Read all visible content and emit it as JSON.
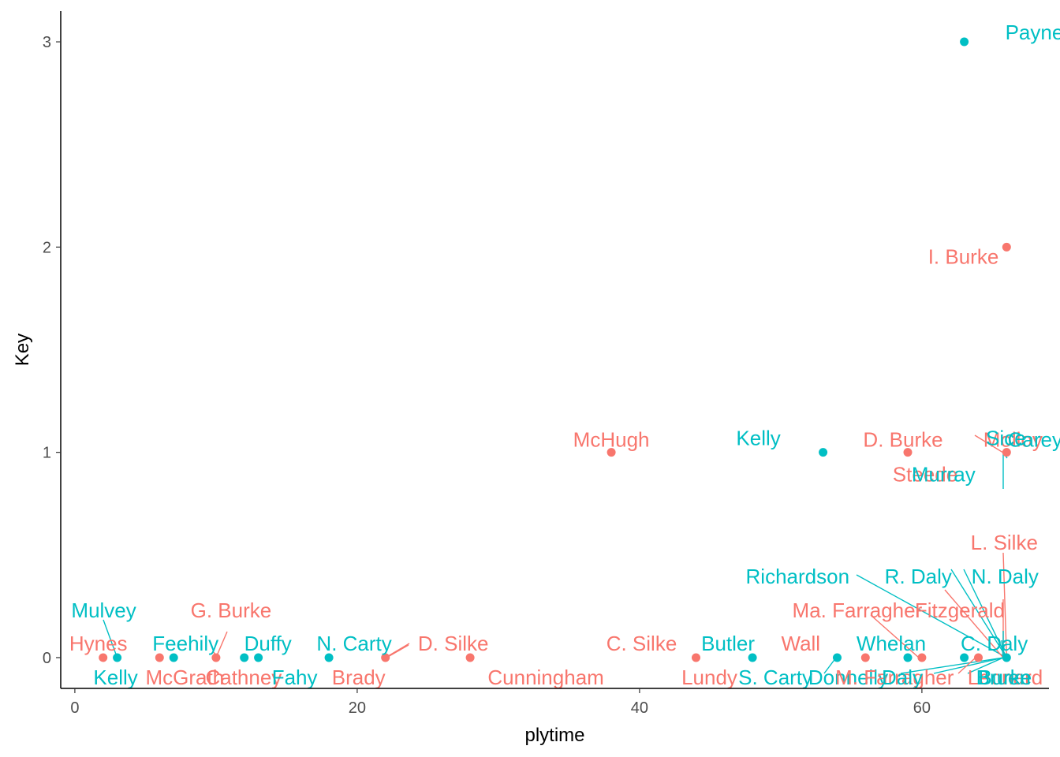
{
  "chart_data": {
    "type": "scatter",
    "xlabel": "plytime",
    "ylabel": "Key",
    "xlim": [
      -1,
      69
    ],
    "ylim": [
      -0.15,
      3.15
    ],
    "x_ticks": [
      0,
      20,
      40,
      60
    ],
    "y_ticks": [
      0,
      1,
      2,
      3
    ],
    "grid": false,
    "legend": "none",
    "colors": {
      "group_a": "#f8766d",
      "group_b": "#00bfc4"
    },
    "points": [
      {
        "x": 63,
        "y": 3,
        "label": "Payne",
        "group": "group_b"
      },
      {
        "x": 66,
        "y": 2,
        "label": "I. Burke",
        "group": "group_a"
      },
      {
        "x": 38,
        "y": 1,
        "label": "McHugh",
        "group": "group_a"
      },
      {
        "x": 53,
        "y": 1,
        "label": "Kelly",
        "group": "group_b"
      },
      {
        "x": 59,
        "y": 1,
        "label": "D. Burke",
        "group": "group_a"
      },
      {
        "x": 59,
        "y": 1,
        "label": "Steede",
        "group": "group_a"
      },
      {
        "x": 66,
        "y": 1,
        "label": "Molloy",
        "group": "group_a"
      },
      {
        "x": 66,
        "y": 1,
        "label": "Sice",
        "group": "group_b"
      },
      {
        "x": 66,
        "y": 1,
        "label": "Murray",
        "group": "group_b"
      },
      {
        "x": 66,
        "y": 1,
        "label": "Carey",
        "group": "group_b"
      },
      {
        "x": 2,
        "y": 0,
        "label": "Hynes",
        "group": "group_a"
      },
      {
        "x": 3,
        "y": 0,
        "label": "Mulvey",
        "group": "group_b"
      },
      {
        "x": 3,
        "y": 0,
        "label": "Kelly",
        "group": "group_b"
      },
      {
        "x": 6,
        "y": 0,
        "label": "McGrath",
        "group": "group_a"
      },
      {
        "x": 7,
        "y": 0,
        "label": "Feehily",
        "group": "group_b"
      },
      {
        "x": 10,
        "y": 0,
        "label": "G. Burke",
        "group": "group_a"
      },
      {
        "x": 10,
        "y": 0,
        "label": "Cathney",
        "group": "group_a"
      },
      {
        "x": 12,
        "y": 0,
        "label": "Duffy",
        "group": "group_b"
      },
      {
        "x": 13,
        "y": 0,
        "label": "Fahy",
        "group": "group_b"
      },
      {
        "x": 18,
        "y": 0,
        "label": "N. Carty",
        "group": "group_b"
      },
      {
        "x": 22,
        "y": 0,
        "label": "D. Silke",
        "group": "group_a"
      },
      {
        "x": 22,
        "y": 0,
        "label": "Brady",
        "group": "group_a"
      },
      {
        "x": 28,
        "y": 0,
        "label": "Cunningham",
        "group": "group_a"
      },
      {
        "x": 44,
        "y": 0,
        "label": "C. Silke",
        "group": "group_a"
      },
      {
        "x": 44,
        "y": 0,
        "label": "Lundy",
        "group": "group_a"
      },
      {
        "x": 48,
        "y": 0,
        "label": "Butler",
        "group": "group_b"
      },
      {
        "x": 48,
        "y": 0,
        "label": "S. Carty",
        "group": "group_b"
      },
      {
        "x": 54,
        "y": 0,
        "label": "Donnelly",
        "group": "group_b"
      },
      {
        "x": 56,
        "y": 0,
        "label": "Wall",
        "group": "group_a"
      },
      {
        "x": 56,
        "y": 0,
        "label": "M. Farragher",
        "group": "group_a"
      },
      {
        "x": 59,
        "y": 0,
        "label": "Whelan",
        "group": "group_b"
      },
      {
        "x": 59,
        "y": 0,
        "label": "Daly",
        "group": "group_b"
      },
      {
        "x": 60,
        "y": 0,
        "label": "Ma. Farragher",
        "group": "group_a"
      },
      {
        "x": 60,
        "y": 0,
        "label": "Fitzgerald",
        "group": "group_a"
      },
      {
        "x": 63,
        "y": 0,
        "label": "C. Daly",
        "group": "group_b"
      },
      {
        "x": 64,
        "y": 0,
        "label": "Leonard",
        "group": "group_a"
      },
      {
        "x": 66,
        "y": 0,
        "label": "Richardson",
        "group": "group_b"
      },
      {
        "x": 66,
        "y": 0,
        "label": "R. Daly",
        "group": "group_b"
      },
      {
        "x": 66,
        "y": 0,
        "label": "N. Daly",
        "group": "group_b"
      },
      {
        "x": 66,
        "y": 0,
        "label": "L. Silke",
        "group": "group_a"
      },
      {
        "x": 66,
        "y": 0,
        "label": "Burke",
        "group": "group_b"
      },
      {
        "x": 66,
        "y": 0,
        "label": "Bruen",
        "group": "group_b"
      }
    ]
  }
}
